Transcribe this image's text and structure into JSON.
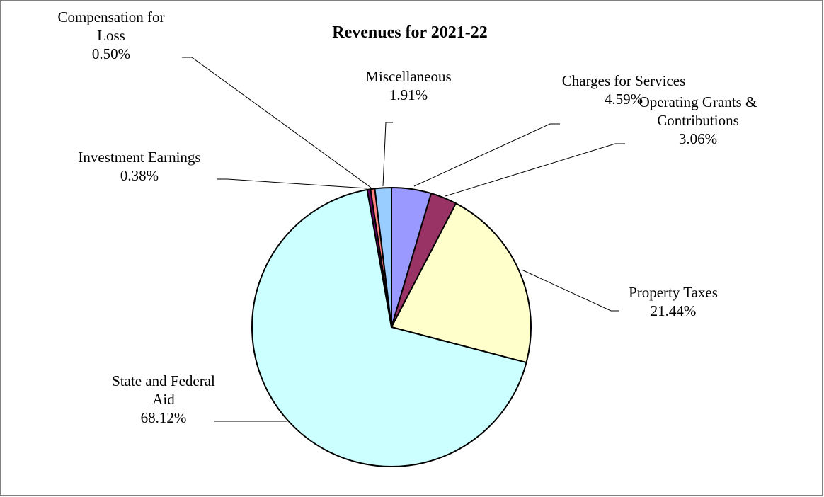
{
  "chart_data": {
    "type": "pie",
    "title": "Revenues for 2021-22",
    "slices": [
      {
        "label_lines": [
          "Charges for Services",
          "4.59%"
        ],
        "value": 4.59,
        "color": "#9999FF"
      },
      {
        "label_lines": [
          "Operating Grants &",
          "Contributions",
          "3.06%"
        ],
        "value": 3.06,
        "color": "#993366"
      },
      {
        "label_lines": [
          "Property Taxes",
          "21.44%"
        ],
        "value": 21.44,
        "color": "#FFFFCC"
      },
      {
        "label_lines": [
          "State and Federal",
          "Aid",
          "68.12%"
        ],
        "value": 68.12,
        "color": "#CCFFFF"
      },
      {
        "label_lines": [
          "Investment Earnings",
          "0.38%"
        ],
        "value": 0.38,
        "color": "#660066"
      },
      {
        "label_lines": [
          "Compensation for",
          "Loss",
          "0.50%"
        ],
        "value": 0.5,
        "color": "#FF8080"
      },
      {
        "label_lines": [
          "Miscellaneous",
          "1.91%"
        ],
        "value": 1.91,
        "color": "#99CCFF"
      }
    ],
    "start_angle_deg": 0,
    "direction": "clockwise",
    "legend": "none"
  }
}
